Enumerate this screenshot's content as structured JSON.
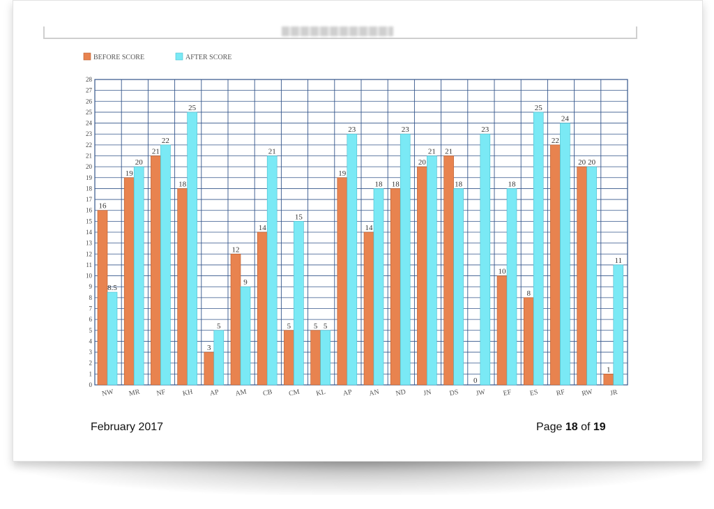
{
  "footer": {
    "date": "February 2017",
    "page_word": "Page",
    "page_current": "18",
    "page_of": "of",
    "page_total": "19"
  },
  "colors": {
    "before": "#E8834F",
    "after": "#7AE9F5",
    "grid": "#33558A"
  },
  "chart_data": {
    "type": "bar",
    "title": "",
    "xlabel": "",
    "ylabel": "",
    "ylim": [
      0,
      28
    ],
    "grid": true,
    "legend_position": "top-left",
    "categories": [
      "NW",
      "MR",
      "NF",
      "KH",
      "AP",
      "AM",
      "CB",
      "CM",
      "KL",
      "AP",
      "AN",
      "ND",
      "JN",
      "DS",
      "JW",
      "EF",
      "ES",
      "RF",
      "RW",
      "JR"
    ],
    "series": [
      {
        "name": "BEFORE SCORE",
        "values": [
          16,
          19,
          21,
          18,
          3,
          12,
          14,
          5,
          5,
          19,
          14,
          18,
          20,
          21,
          0,
          10,
          8,
          22,
          20,
          1
        ]
      },
      {
        "name": "AFTER SCORE",
        "values": [
          8.5,
          20,
          22,
          25,
          5,
          9,
          21,
          15,
          5,
          23,
          18,
          23,
          21,
          18,
          23,
          18,
          25,
          24,
          20,
          11
        ]
      }
    ],
    "value_labels_before": [
      "16",
      "19",
      "21",
      "18",
      "3",
      "12",
      "14",
      "5",
      "5",
      "19",
      "14",
      "18",
      "20",
      "21",
      "0",
      "10",
      "8",
      "22",
      "20",
      "1"
    ],
    "value_labels_after": [
      "8.5",
      "20",
      "22",
      "25",
      "5",
      "9",
      "21",
      "15",
      "5",
      "23",
      "18",
      "23",
      "21",
      "18",
      "23",
      "18",
      "25",
      "24",
      "20",
      "11"
    ]
  }
}
